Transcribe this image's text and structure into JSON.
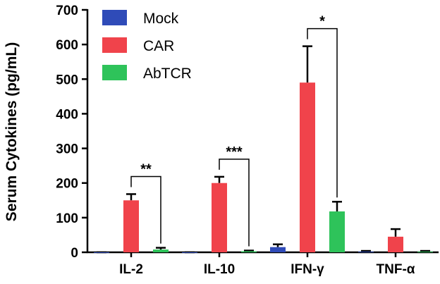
{
  "chart_data": {
    "type": "bar",
    "title": "",
    "xlabel": "",
    "ylabel": "Serum Cytokines (pg/mL)",
    "ylim": [
      0,
      700
    ],
    "yticks": [
      "0",
      "100",
      "200",
      "300",
      "400",
      "500",
      "600",
      "700"
    ],
    "categories": [
      "IL-2",
      "IL-10",
      "IFN-γ",
      "TNF-α"
    ],
    "series": [
      {
        "name": "Mock",
        "color": "#2f4bb8",
        "values": [
          0,
          0,
          15,
          2
        ],
        "errors": [
          0,
          0,
          8,
          2
        ]
      },
      {
        "name": "CAR",
        "color": "#f0434b",
        "values": [
          150,
          200,
          490,
          45
        ],
        "errors": [
          18,
          18,
          105,
          22
        ]
      },
      {
        "name": "AbTCR",
        "color": "#2ec35a",
        "values": [
          8,
          3,
          118,
          2
        ],
        "errors": [
          5,
          2,
          28,
          2
        ]
      }
    ],
    "legend_position": "top-left",
    "grid": false,
    "significance": [
      {
        "category": 0,
        "from": "CAR",
        "to": "AbTCR",
        "label": "**"
      },
      {
        "category": 1,
        "from": "CAR",
        "to": "AbTCR",
        "label": "***"
      },
      {
        "category": 2,
        "from": "CAR",
        "to": "AbTCR",
        "label": "*"
      }
    ]
  }
}
